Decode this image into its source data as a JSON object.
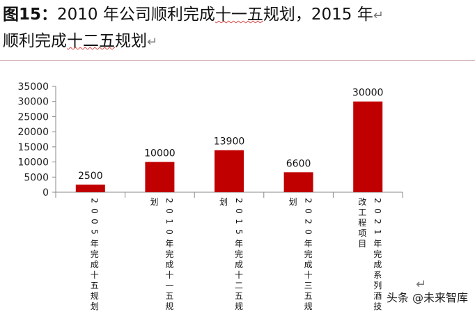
{
  "heading": {
    "line1_fig": "图15：",
    "line1_text": "2010 年公司顺利完成",
    "line1_underlined": "十一五",
    "line1_tail": "规划，2015 年",
    "line2_text": "顺利完成",
    "line2_underlined": "十二五",
    "line2_tail": "规划",
    "return_mark": "↵"
  },
  "watermark": "头条 @未来智库",
  "colors": {
    "bar": "#c00000",
    "axis": "#888888",
    "rule": "#c9a0a0"
  },
  "chart_data": {
    "type": "bar",
    "categories": [
      [
        "2005年完成十五规划"
      ],
      [
        "2010年完成十一五规",
        "划"
      ],
      [
        "2015年完成十二五规",
        "划"
      ],
      [
        "2020年完成十三五规",
        "划"
      ],
      [
        "2021年完成系列酒技",
        "改工程项目"
      ]
    ],
    "values": [
      2500,
      10000,
      13900,
      6600,
      30000
    ],
    "data_labels": [
      "2500",
      "10000",
      "13900",
      "6600",
      "30000"
    ],
    "yticks": [
      "0",
      "5000",
      "10000",
      "15000",
      "20000",
      "25000",
      "30000",
      "35000"
    ],
    "ylim": [
      0,
      35000
    ],
    "legend": "none",
    "grid": false
  }
}
